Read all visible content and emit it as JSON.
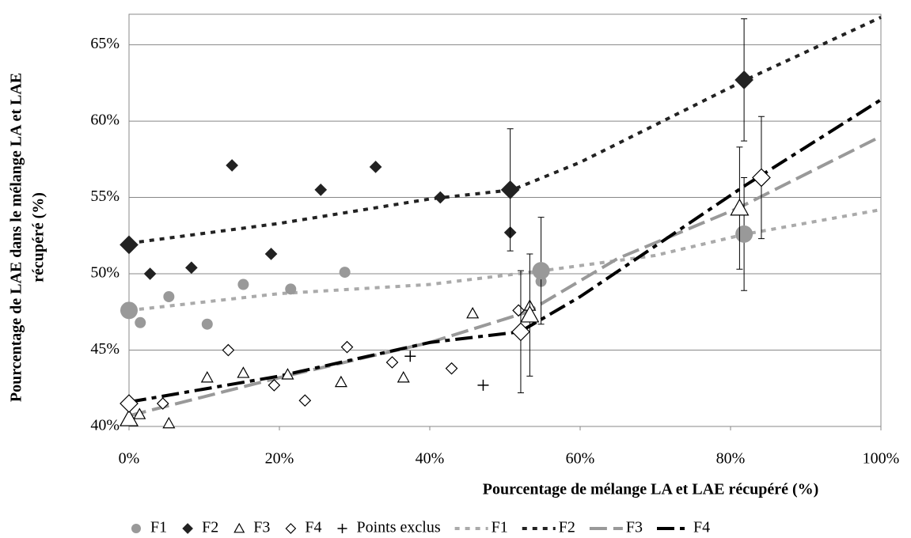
{
  "chart_data": {
    "type": "scatter",
    "xlabel": "Pourcentage de mélange LA et LAE récupéré (%)",
    "ylabel": [
      "Pourcentage de LAE  dans le mélange LA et LAE",
      "récupéré  (%)"
    ],
    "xlim": [
      0,
      100
    ],
    "ylim": [
      40,
      67
    ],
    "xticks": [
      {
        "value": 0,
        "label": "0%"
      },
      {
        "value": 20,
        "label": "20%"
      },
      {
        "value": 40,
        "label": "40%"
      },
      {
        "value": 60,
        "label": "60%"
      },
      {
        "value": 80,
        "label": "80%"
      },
      {
        "value": 100,
        "label": "100%"
      }
    ],
    "yticks": [
      {
        "value": 40,
        "label": "40%"
      },
      {
        "value": 45,
        "label": "45%"
      },
      {
        "value": 50,
        "label": "50%"
      },
      {
        "value": 55,
        "label": "55%"
      },
      {
        "value": 60,
        "label": "60%"
      },
      {
        "value": 65,
        "label": "65%"
      }
    ],
    "grid": true,
    "legend": "bottom",
    "series": [
      {
        "name": "F1",
        "color": "#999999",
        "marker": "circle",
        "x": [
          1.5,
          5.3,
          10.4,
          15.2,
          21.5,
          28.7,
          54.8
        ],
        "values": [
          46.8,
          48.5,
          46.7,
          49.3,
          49.0,
          50.1,
          49.5
        ],
        "means": {
          "x": [
            0,
            54.8,
            81.8
          ],
          "values": [
            47.6,
            50.2,
            52.6
          ],
          "errors": [
            0,
            3.5,
            3.7
          ]
        }
      },
      {
        "name": "F2",
        "color": "#222222",
        "marker": "diamond",
        "x": [
          2.8,
          8.3,
          13.7,
          18.9,
          25.5,
          32.8,
          41.4,
          50.7
        ],
        "values": [
          50.0,
          50.4,
          57.1,
          51.3,
          55.5,
          57.0,
          55.0,
          52.7
        ],
        "means": {
          "x": [
            0,
            50.7,
            81.8
          ],
          "values": [
            51.9,
            55.5,
            62.7
          ],
          "errors": [
            0,
            4.0,
            4.0
          ]
        }
      },
      {
        "name": "F3",
        "color": "#000000",
        "marker": "triangle",
        "x": [
          1.4,
          5.3,
          10.4,
          15.2,
          21.1,
          28.2,
          36.5,
          45.7,
          53.3
        ],
        "values": [
          40.8,
          40.2,
          43.2,
          43.5,
          43.4,
          42.9,
          43.2,
          47.4,
          47.9
        ],
        "means": {
          "x": [
            0,
            53.3,
            81.2
          ],
          "values": [
            40.5,
            47.3,
            54.3
          ],
          "errors": [
            0,
            4.0,
            4.0
          ]
        }
      },
      {
        "name": "F4",
        "color": "#000000",
        "marker": "open-diamond",
        "x": [
          4.5,
          13.2,
          19.3,
          23.4,
          29.0,
          35.0,
          42.9,
          51.8
        ],
        "values": [
          41.5,
          45.0,
          42.7,
          41.7,
          45.2,
          44.2,
          43.8,
          47.6
        ],
        "means": {
          "x": [
            0,
            52.1,
            84.1
          ],
          "values": [
            41.5,
            46.2,
            56.3
          ],
          "errors": [
            0,
            4.0,
            4.0
          ]
        }
      },
      {
        "name": "Points exclus",
        "color": "#000000",
        "marker": "plus",
        "x": [
          37.4,
          47.1
        ],
        "values": [
          44.6,
          42.7
        ]
      }
    ],
    "trends": [
      {
        "name": "F1",
        "color": "#aaaaaa",
        "dash": "short",
        "x": [
          0,
          20,
          40,
          55,
          70,
          82,
          100
        ],
        "values": [
          47.6,
          48.7,
          49.3,
          50.2,
          51.2,
          52.6,
          54.2
        ]
      },
      {
        "name": "F2",
        "color": "#222222",
        "dash": "short",
        "x": [
          0,
          20,
          40,
          51,
          60,
          82,
          100
        ],
        "values": [
          52.0,
          53.3,
          54.9,
          55.5,
          57.3,
          62.7,
          66.8
        ]
      },
      {
        "name": "F3",
        "color": "#999999",
        "dash": "long",
        "x": [
          0,
          20,
          40,
          53,
          65,
          81,
          100
        ],
        "values": [
          40.7,
          43.2,
          45.5,
          47.5,
          51.0,
          54.3,
          59.0
        ]
      },
      {
        "name": "F4",
        "color": "#000000",
        "dash": "dash-dot",
        "x": [
          0,
          20,
          40,
          52,
          60,
          82,
          100
        ],
        "values": [
          41.6,
          43.3,
          45.5,
          46.2,
          48.5,
          55.8,
          61.4
        ]
      }
    ]
  }
}
